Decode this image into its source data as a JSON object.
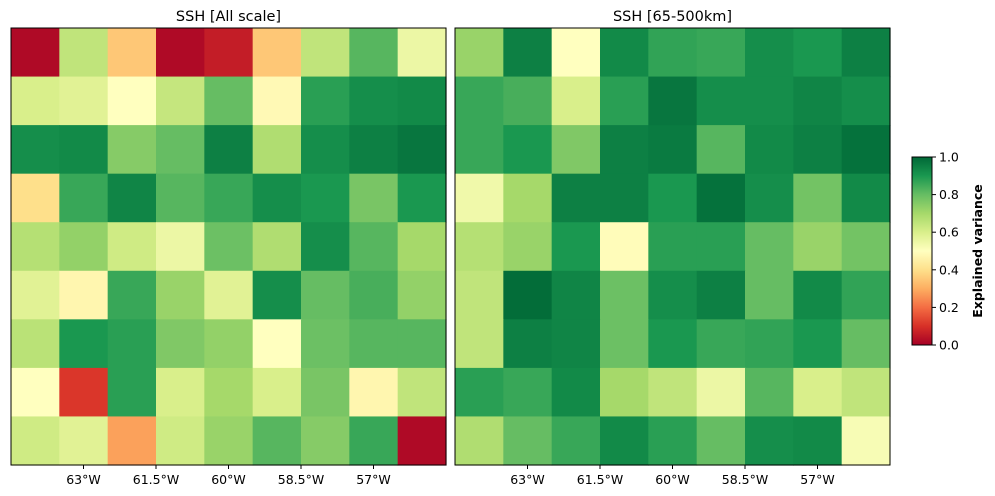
{
  "chart_data": [
    {
      "type": "heatmap",
      "title": "SSH [All scale]",
      "xlabel": "",
      "ylabel": "",
      "x_ticks": [
        "63°W",
        "61.5°W",
        "60°W",
        "58.5°W",
        "57°W"
      ],
      "x_tick_values": [
        -63,
        -61.5,
        -60,
        -58.5,
        -57
      ],
      "x_range": [
        -64.5,
        -55.5
      ],
      "n_cols": 9,
      "n_rows": 9,
      "values": [
        [
          0.02,
          0.65,
          0.35,
          0.02,
          0.06,
          0.35,
          0.65,
          0.82,
          0.55
        ],
        [
          0.6,
          0.58,
          0.5,
          0.64,
          0.8,
          0.48,
          0.88,
          0.92,
          0.93
        ],
        [
          0.92,
          0.93,
          0.75,
          0.8,
          0.95,
          0.68,
          0.92,
          0.95,
          0.97
        ],
        [
          0.4,
          0.86,
          0.94,
          0.82,
          0.86,
          0.92,
          0.9,
          0.77,
          0.9
        ],
        [
          0.67,
          0.73,
          0.62,
          0.55,
          0.79,
          0.68,
          0.92,
          0.82,
          0.7
        ],
        [
          0.58,
          0.47,
          0.86,
          0.72,
          0.58,
          0.92,
          0.8,
          0.84,
          0.73
        ],
        [
          0.66,
          0.9,
          0.88,
          0.76,
          0.73,
          0.5,
          0.79,
          0.82,
          0.82
        ],
        [
          0.5,
          0.11,
          0.88,
          0.6,
          0.7,
          0.6,
          0.77,
          0.47,
          0.65
        ],
        [
          0.62,
          0.58,
          0.28,
          0.62,
          0.72,
          0.82,
          0.75,
          0.86,
          0.02
        ]
      ]
    },
    {
      "type": "heatmap",
      "title": "SSH [65-500km]",
      "xlabel": "",
      "ylabel": "",
      "x_ticks": [
        "63°W",
        "61.5°W",
        "60°W",
        "58.5°W",
        "57°W"
      ],
      "x_tick_values": [
        -63,
        -61.5,
        -60,
        -58.5,
        -57
      ],
      "x_range": [
        -64.5,
        -55.5
      ],
      "n_cols": 9,
      "n_rows": 9,
      "values": [
        [
          0.72,
          0.95,
          0.5,
          0.93,
          0.87,
          0.86,
          0.92,
          0.9,
          0.95
        ],
        [
          0.86,
          0.84,
          0.6,
          0.88,
          0.97,
          0.92,
          0.92,
          0.94,
          0.92
        ],
        [
          0.86,
          0.9,
          0.76,
          0.95,
          0.96,
          0.82,
          0.93,
          0.95,
          0.98
        ],
        [
          0.54,
          0.7,
          0.95,
          0.95,
          0.9,
          0.98,
          0.92,
          0.78,
          0.93
        ],
        [
          0.67,
          0.72,
          0.9,
          0.49,
          0.88,
          0.88,
          0.8,
          0.72,
          0.78
        ],
        [
          0.65,
          0.99,
          0.94,
          0.79,
          0.92,
          0.95,
          0.8,
          0.93,
          0.87
        ],
        [
          0.65,
          0.95,
          0.94,
          0.79,
          0.9,
          0.86,
          0.87,
          0.9,
          0.8
        ],
        [
          0.88,
          0.86,
          0.93,
          0.7,
          0.65,
          0.55,
          0.82,
          0.6,
          0.65
        ],
        [
          0.68,
          0.8,
          0.86,
          0.93,
          0.88,
          0.8,
          0.92,
          0.93,
          0.52
        ]
      ]
    }
  ],
  "colorbar": {
    "label": "Explained variance",
    "range": [
      0.0,
      1.0
    ],
    "ticks": [
      "0.0",
      "0.2",
      "0.4",
      "0.6",
      "0.8",
      "1.0"
    ],
    "tick_values": [
      0.0,
      0.2,
      0.4,
      0.6,
      0.8,
      1.0
    ],
    "colormap": "RdYlGn",
    "colormap_stops": [
      "#a50026",
      "#d73027",
      "#f46d43",
      "#fdae61",
      "#fee08b",
      "#ffffbf",
      "#d9ef8b",
      "#a6d96a",
      "#66bd63",
      "#1a9850",
      "#006837"
    ]
  }
}
